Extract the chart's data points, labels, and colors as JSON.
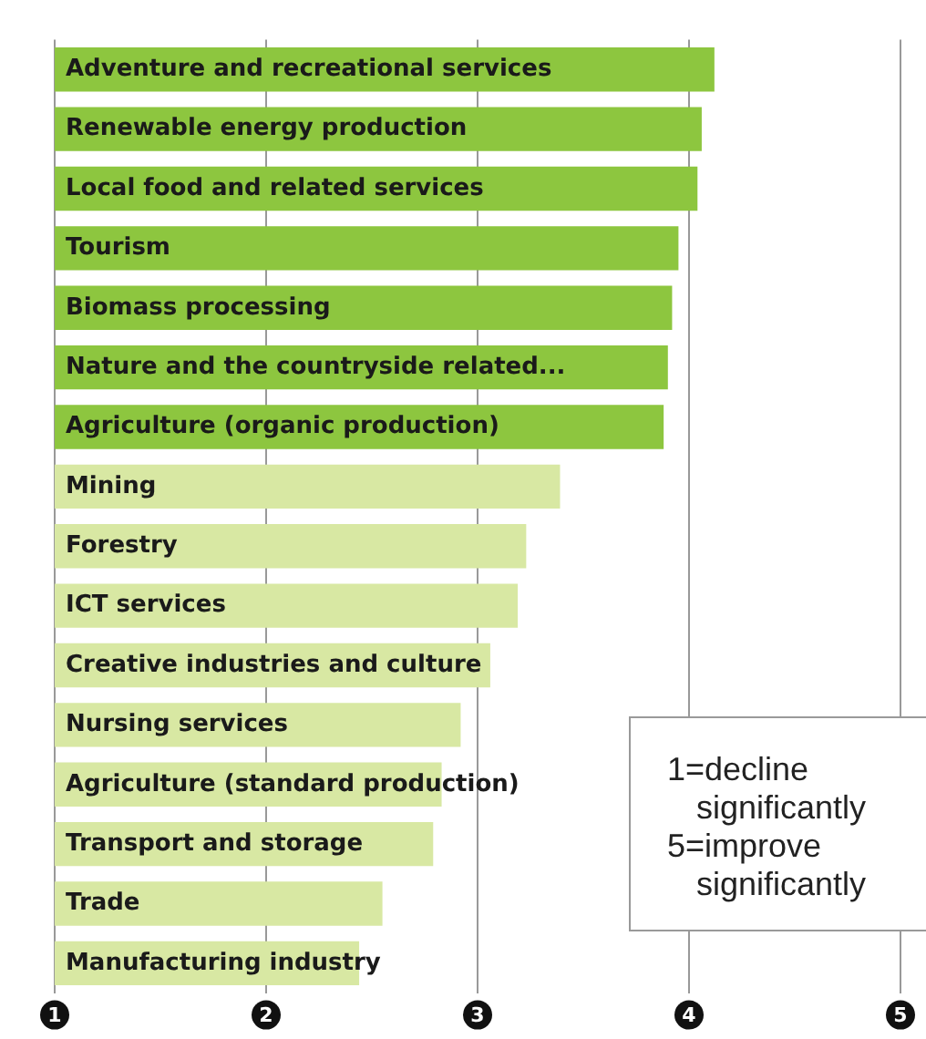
{
  "chart_data": {
    "type": "bar",
    "orientation": "horizontal",
    "categories": [
      "Adventure and recreational services",
      "Renewable energy production",
      "Local food and related services",
      "Tourism",
      "Biomass processing",
      "Nature and the countryside related...",
      "Agriculture (organic production)",
      "Mining",
      "Forestry",
      "ICT services",
      "Creative industries and culture",
      "Nursing services",
      "Agriculture (standard production)",
      "Transport and storage",
      "Trade",
      "Manufacturing industry"
    ],
    "values": [
      4.12,
      4.06,
      4.04,
      3.95,
      3.92,
      3.9,
      3.88,
      3.39,
      3.23,
      3.19,
      3.06,
      2.92,
      2.83,
      2.79,
      2.55,
      2.44
    ],
    "colors": [
      "#8dc63f",
      "#8dc63f",
      "#8dc63f",
      "#8dc63f",
      "#8dc63f",
      "#8dc63f",
      "#8dc63f",
      "#d8e8a3",
      "#d8e8a3",
      "#d8e8a3",
      "#d8e8a3",
      "#d8e8a3",
      "#d8e8a3",
      "#d8e8a3",
      "#d8e8a3",
      "#d8e8a3"
    ],
    "xlim": [
      1,
      5
    ],
    "xticks": [
      1,
      2,
      3,
      4,
      5
    ],
    "grid": "x",
    "legend": false,
    "annotations": [
      "1=decline significantly",
      "5=improve significantly"
    ]
  }
}
